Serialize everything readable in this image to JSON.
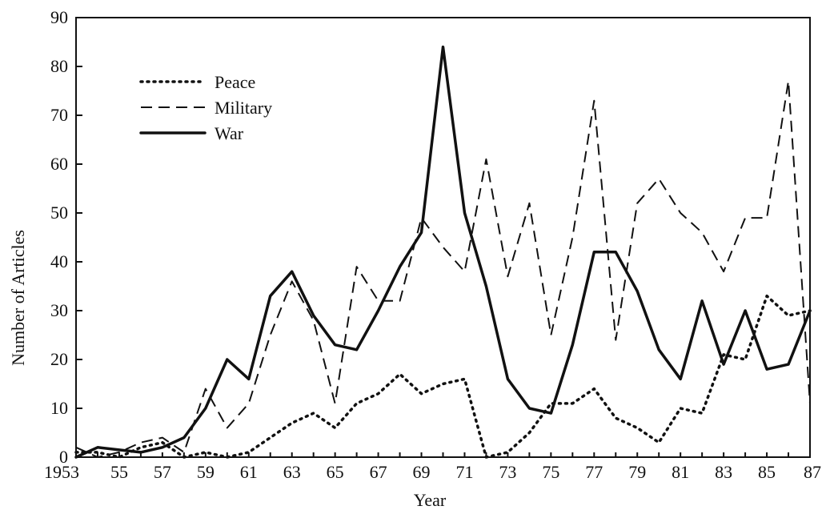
{
  "chart_data": {
    "type": "line",
    "title": "",
    "xlabel": "Year",
    "ylabel": "Number of Articles",
    "x": [
      1953,
      1954,
      1955,
      1956,
      1957,
      1958,
      1959,
      1960,
      1961,
      1962,
      1963,
      1964,
      1965,
      1966,
      1967,
      1968,
      1969,
      1970,
      1971,
      1972,
      1973,
      1974,
      1975,
      1976,
      1977,
      1978,
      1979,
      1980,
      1981,
      1982,
      1983,
      1984,
      1985,
      1986,
      1987
    ],
    "xlim": [
      1953,
      1987
    ],
    "ylim": [
      0,
      90
    ],
    "yticks": [
      0,
      10,
      20,
      30,
      40,
      50,
      60,
      70,
      80,
      90
    ],
    "yticklabels": [
      "0",
      "10",
      "20",
      "30",
      "40",
      "50",
      "60",
      "70",
      "80",
      "90"
    ],
    "xticks": [
      1953,
      1955,
      1957,
      1959,
      1961,
      1963,
      1965,
      1967,
      1969,
      1971,
      1973,
      1975,
      1977,
      1979,
      1981,
      1983,
      1985,
      1987
    ],
    "xticklabels": [
      "1953",
      "55",
      "57",
      "59",
      "61",
      "63",
      "65",
      "67",
      "69",
      "71",
      "73",
      "75",
      "77",
      "79",
      "81",
      "83",
      "85",
      "87"
    ],
    "grid": false,
    "legend_position": "top-left",
    "series": [
      {
        "name": "Peace",
        "style": "dotted",
        "color": "#111111",
        "values": [
          1,
          1,
          0,
          2,
          3,
          0,
          1,
          0,
          1,
          4,
          7,
          9,
          6,
          11,
          13,
          17,
          13,
          15,
          16,
          0,
          1,
          5,
          11,
          11,
          14,
          8,
          6,
          3,
          10,
          9,
          21,
          20,
          33,
          29,
          30
        ]
      },
      {
        "name": "Military",
        "style": "dashed",
        "color": "#111111",
        "values": [
          2,
          0,
          1,
          3,
          4,
          1,
          14,
          6,
          11,
          25,
          36,
          28,
          11,
          39,
          32,
          32,
          49,
          43,
          38,
          61,
          37,
          52,
          25,
          45,
          73,
          24,
          52,
          57,
          50,
          46,
          38,
          49,
          49,
          77,
          11
        ]
      },
      {
        "name": "War",
        "style": "solid",
        "color": "#111111",
        "values": [
          0,
          2,
          1.5,
          1,
          2,
          4,
          10,
          20,
          16,
          33,
          38,
          29,
          23,
          22,
          30,
          39,
          46,
          84,
          50,
          35,
          16,
          10,
          9,
          23,
          42,
          42,
          34,
          22,
          16,
          32,
          19,
          30,
          18,
          19,
          30
        ]
      }
    ]
  }
}
